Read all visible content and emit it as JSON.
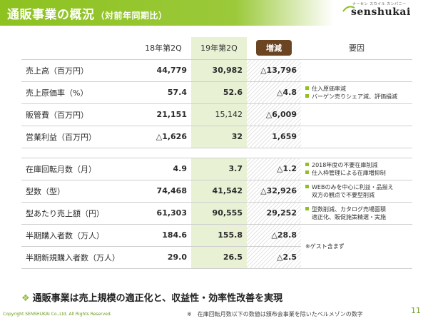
{
  "header": {
    "title": "通販事業の概況",
    "subtitle": "（対前年同期比）",
    "logo_kana": "ナーセン スカイル カンパニー",
    "logo_text": "senshukai"
  },
  "table": {
    "columns": [
      "18年第2Q",
      "19年第2Q",
      "増減",
      "要因"
    ],
    "rows": [
      {
        "label": "売上高（百万円）",
        "v18": "44,779",
        "v19": "30,982",
        "chg": "△13,796",
        "reasons": []
      },
      {
        "label": "売上原価率（%）",
        "v18": "57.4",
        "v19": "52.6",
        "chg": "△4.8",
        "reasons": [
          "仕入原価率減",
          "バーゲン売りシェア減、評価損減"
        ]
      },
      {
        "label": "販管費（百万円）",
        "v18": "21,151",
        "v19": "15,142",
        "chg": "△6,009",
        "reasons": []
      },
      {
        "label": "営業利益（百万円）",
        "v18": "△1,626",
        "v19": "32",
        "chg": "1,659",
        "reasons": []
      },
      {
        "label": "在庫回転月数（月）",
        "v18": "4.9",
        "v19": "3.7",
        "chg": "△1.2",
        "reasons": [
          "2018年度の不要在庫削減",
          "仕入枠管理による在庫増抑制"
        ]
      },
      {
        "label": "型数（型）",
        "v18": "74,468",
        "v19": "41,542",
        "chg": "△32,926",
        "reasons": [
          "WEBのみを中心に利益・品揃え",
          "双方の観点で不要型削減"
        ]
      },
      {
        "label": "型あたり売上額（円）",
        "v18": "61,303",
        "v19": "90,555",
        "chg": "29,252",
        "reasons": [
          "型数削減、カタログ売場面積",
          "適正化、販促施策精選・実施"
        ]
      },
      {
        "label": "半期購入者数（万人）",
        "v18": "184.6",
        "v19": "155.8",
        "chg": "△28.8",
        "reasons": []
      },
      {
        "label": "半期新規購入者数（万人）",
        "v18": "29.0",
        "v19": "26.5",
        "chg": "△2.5",
        "reasons": []
      }
    ],
    "guest_note": "※ゲスト含まず"
  },
  "conclusion": "通販事業は売上規模の適正化と、収益性・効率性改善を実現",
  "footer": {
    "copyright": "Copyright SENSHUKAI Co.,Ltd. All Rights Reserved.",
    "note": "※　在庫回転月数以下の数値は頒布会事業を除いたベルメゾンの数字",
    "page": "11"
  },
  "colors": {
    "accent_green": "#8dc21f",
    "badge_brown": "#6b4422",
    "highlight": "#e8f1d4"
  }
}
